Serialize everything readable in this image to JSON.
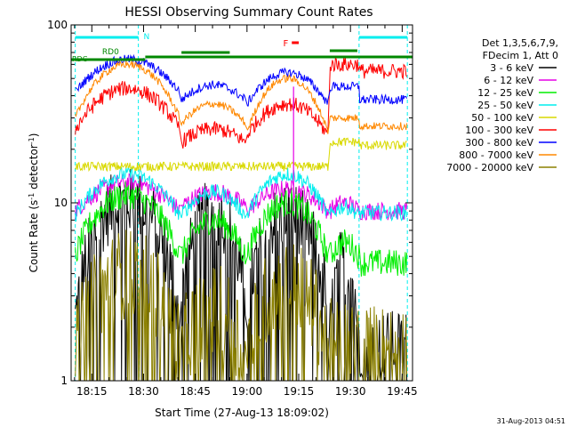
{
  "chart_data": {
    "type": "line",
    "title": "HESSI Observing Summary Count Rates",
    "xlabel": "Start Time (27-Aug-13 18:09:02)",
    "ylabel": "Count Rate (s⁻¹ detector⁻¹)",
    "ylabel_main": "Count Rate (s",
    "ylabel_sup1": "-1",
    "ylabel_mid": " detector",
    "ylabel_sup2": "-1",
    "ylabel_end": ")",
    "yscale": "log",
    "ylim": [
      1,
      100
    ],
    "xlim_minutes": [
      1089.0,
      1188.0
    ],
    "x_ticks": [
      "18:15",
      "18:30",
      "18:45",
      "19:00",
      "19:15",
      "19:30",
      "19:45"
    ],
    "x_tick_minutes": [
      1095,
      1110,
      1125,
      1140,
      1155,
      1170,
      1185
    ],
    "y_ticks": [
      "1",
      "10",
      "100"
    ],
    "legend_header": [
      "Det 1,3,5,6,7,9,",
      "FDecim 1, Att 0"
    ],
    "series": [
      {
        "name": "3 - 6 keV",
        "color": "#000000"
      },
      {
        "name": "6 - 12 keV",
        "color": "#e600e6"
      },
      {
        "name": "12 - 25 keV",
        "color": "#00ee00"
      },
      {
        "name": "25 - 50 keV",
        "color": "#00eeee"
      },
      {
        "name": "50 - 100 keV",
        "color": "#d9d900"
      },
      {
        "name": "100 - 300 keV",
        "color": "#ff0000"
      },
      {
        "name": "300 - 800 keV",
        "color": "#0000ff"
      },
      {
        "name": "800 - 7000 keV",
        "color": "#ff8800"
      },
      {
        "name": "7000 - 20000 keV",
        "color": "#8b8000"
      }
    ],
    "annotations": {
      "night_label": "N",
      "flare_label": "F",
      "saa_label": "RD0",
      "saa_label2": "RDC",
      "night_color": "#00eeee",
      "flare_color": "#ff0000",
      "saa_color": "#008800"
    },
    "timestamp": "31-Aug-2013 04:51"
  }
}
